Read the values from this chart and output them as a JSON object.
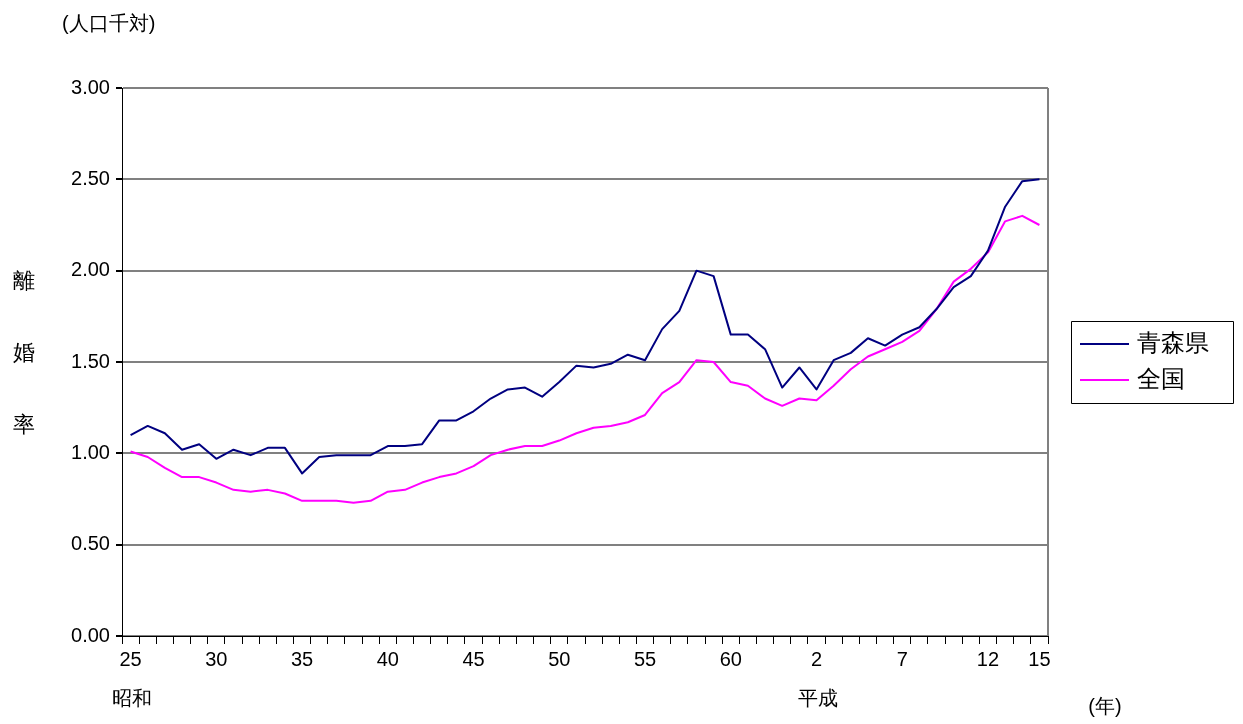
{
  "chart_data": {
    "type": "line",
    "xlabel": "(年)",
    "ylabel": "離婚率",
    "annotations": [
      "(人口千対)",
      "昭和",
      "平成"
    ],
    "categories": [
      "25",
      null,
      null,
      null,
      null,
      "30",
      null,
      null,
      null,
      null,
      "35",
      null,
      null,
      null,
      null,
      "40",
      null,
      null,
      null,
      null,
      "45",
      null,
      null,
      null,
      null,
      "50",
      null,
      null,
      null,
      null,
      "55",
      null,
      null,
      null,
      null,
      "60",
      null,
      null,
      null,
      null,
      "2",
      null,
      null,
      null,
      null,
      "7",
      null,
      null,
      null,
      null,
      "12",
      null,
      null,
      "15"
    ],
    "series": [
      {
        "name": "青森県",
        "color": "#000080",
        "values": [
          1.1,
          1.15,
          1.11,
          1.02,
          1.05,
          0.97,
          1.02,
          0.99,
          1.03,
          1.03,
          0.89,
          0.98,
          0.99,
          0.99,
          0.99,
          1.04,
          1.04,
          1.05,
          1.18,
          1.18,
          1.23,
          1.3,
          1.35,
          1.36,
          1.31,
          1.39,
          1.48,
          1.47,
          1.49,
          1.54,
          1.51,
          1.68,
          1.78,
          2.0,
          1.97,
          1.65,
          1.65,
          1.57,
          1.36,
          1.47,
          1.35,
          1.51,
          1.55,
          1.63,
          1.59,
          1.65,
          1.69,
          1.79,
          1.91,
          1.97,
          2.11,
          2.35,
          2.49,
          2.5
        ]
      },
      {
        "name": "全国",
        "color": "#ff00ff",
        "values": [
          1.01,
          0.98,
          0.92,
          0.87,
          0.87,
          0.84,
          0.8,
          0.79,
          0.8,
          0.78,
          0.74,
          0.74,
          0.74,
          0.73,
          0.74,
          0.79,
          0.8,
          0.84,
          0.87,
          0.89,
          0.93,
          0.99,
          1.02,
          1.04,
          1.04,
          1.07,
          1.11,
          1.14,
          1.15,
          1.17,
          1.21,
          1.33,
          1.39,
          1.51,
          1.5,
          1.39,
          1.37,
          1.3,
          1.26,
          1.3,
          1.29,
          1.37,
          1.46,
          1.53,
          1.57,
          1.61,
          1.67,
          1.79,
          1.94,
          2.01,
          2.1,
          2.27,
          2.3,
          2.25
        ]
      }
    ],
    "ylim": [
      0,
      3
    ],
    "yticks": [
      {
        "value": 0,
        "label": "0.00"
      },
      {
        "value": 0.5,
        "label": "0.50"
      },
      {
        "value": 1,
        "label": "1.00"
      },
      {
        "value": 1.5,
        "label": "1.50"
      },
      {
        "value": 2,
        "label": "2.00"
      },
      {
        "value": 2.5,
        "label": "2.50"
      },
      {
        "value": 3,
        "label": "3.00"
      }
    ],
    "grid": "y",
    "legend": "right",
    "marker": "none",
    "line_style": "solid"
  }
}
